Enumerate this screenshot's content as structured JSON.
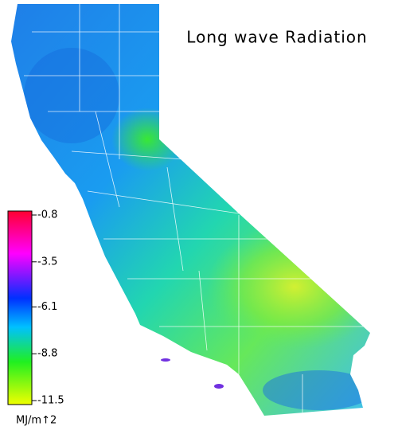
{
  "title": "Long wave Radiation",
  "colorbar": {
    "lim": [
      -0.8,
      -11.5
    ],
    "ticks": [
      -0.8,
      -3.5,
      -6.1,
      -8.8,
      -11.5
    ],
    "label": "MJ/m↑2"
  }
}
